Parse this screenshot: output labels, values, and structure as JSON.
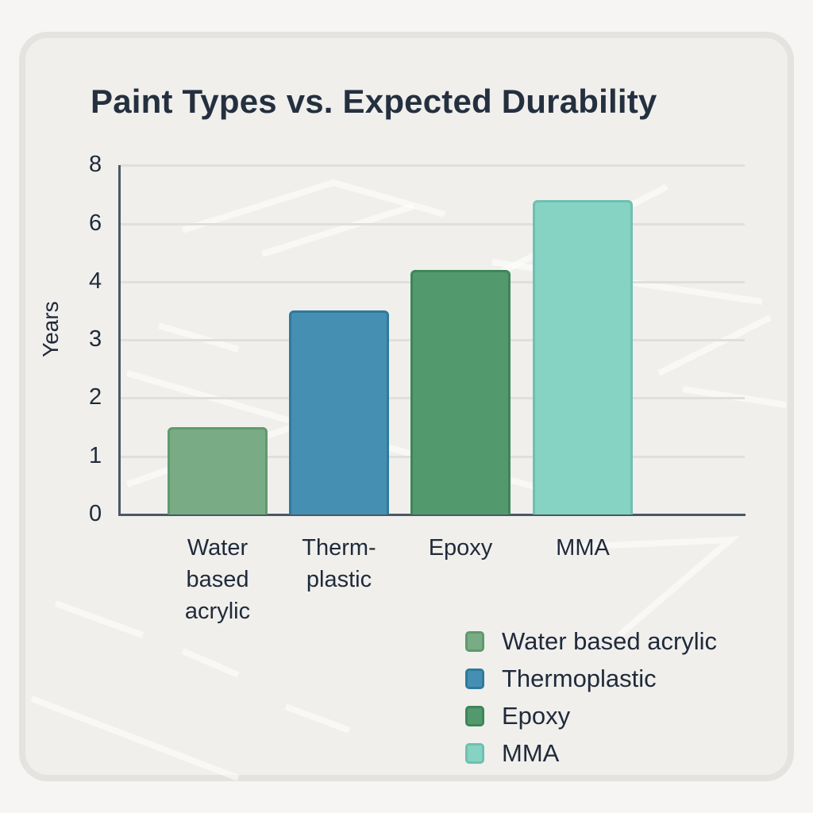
{
  "chart_data": {
    "type": "bar",
    "title": "Paint Types vs. Expected Durability",
    "xlabel": "",
    "ylabel": "Years",
    "categories": [
      "Water based acrylic",
      "Thermoplastic",
      "Epoxy",
      "MMA"
    ],
    "category_display_labels": [
      "Water\nbased\nacrylic",
      "Therm-\nplastic",
      "Epoxy",
      "MMA"
    ],
    "values": [
      1.5,
      3.5,
      4.4,
      6.8
    ],
    "y_tick_labels": [
      "0",
      "1",
      "2",
      "3",
      "4",
      "6",
      "8"
    ],
    "ylim": [
      0,
      8
    ],
    "grid": true,
    "legend_position": "bottom-right",
    "colors": [
      "#79ab84",
      "#4590b2",
      "#529a6e",
      "#86d2c3"
    ],
    "border_colors": [
      "#5f9a6c",
      "#2f7a9c",
      "#3d8658",
      "#6ec0b1"
    ]
  },
  "legend": {
    "items": [
      {
        "label": "Water based acrylic",
        "color": "#79ab84"
      },
      {
        "label": "Thermoplastic",
        "color": "#4590b2"
      },
      {
        "label": "Epoxy",
        "color": "#529a6e"
      },
      {
        "label": "MMA",
        "color": "#86d2c3"
      }
    ]
  }
}
